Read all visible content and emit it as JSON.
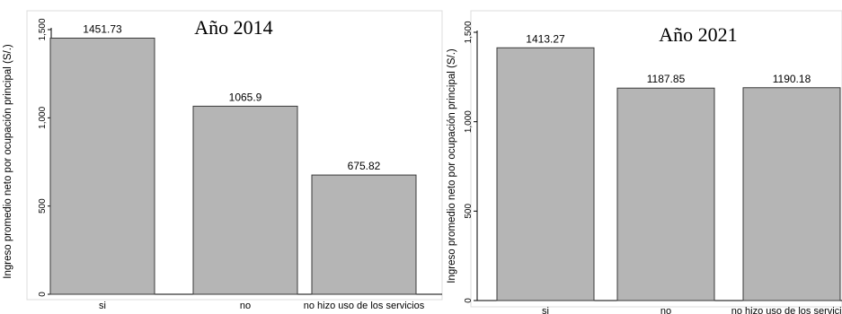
{
  "chart_data": [
    {
      "type": "bar",
      "title": "",
      "overlay_label": "Año 2014",
      "ylabel": "Ingreso promedio neto por ocupación principal (S/.)",
      "xlabel": "",
      "categories": [
        "si",
        "no",
        "no hizo uso de los servicios"
      ],
      "values": [
        1451.73,
        1065.9,
        675.82
      ],
      "value_labels": [
        "1451.73",
        "1065.9",
        "675.82"
      ],
      "ylim": [
        0,
        1500
      ],
      "yticks": [
        0,
        500,
        1000,
        1500
      ],
      "ytick_labels": [
        "0",
        "500",
        "1,000",
        "1,500"
      ],
      "bar_color": "#b5b5b5",
      "grid": false
    },
    {
      "type": "bar",
      "title": "",
      "overlay_label": "Año 2021",
      "ylabel": "Ingreso promedio neto por ocupación principal (S/.)",
      "xlabel": "",
      "categories": [
        "si",
        "no",
        "no hizo uso de los servicios"
      ],
      "values": [
        1413.27,
        1187.85,
        1190.18
      ],
      "value_labels": [
        "1413.27",
        "1187.85",
        "1190.18"
      ],
      "ylim": [
        0,
        1500
      ],
      "yticks": [
        0,
        500,
        1000,
        1500
      ],
      "ytick_labels": [
        "0",
        "500",
        "1,000",
        "1,500"
      ],
      "bar_color": "#b5b5b5",
      "grid": false
    }
  ]
}
